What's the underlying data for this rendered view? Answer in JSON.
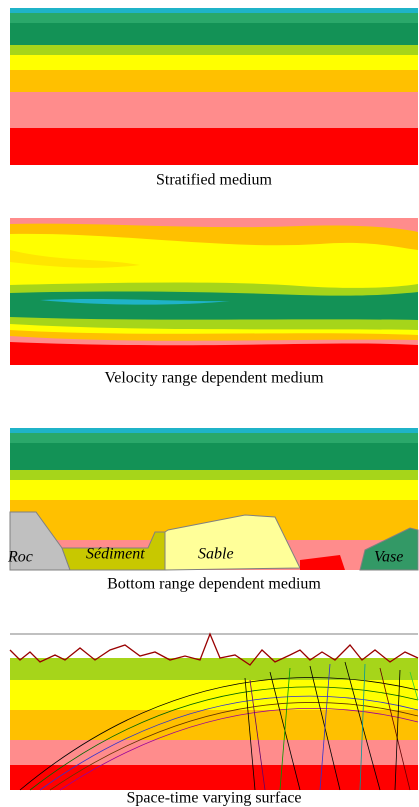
{
  "panels": [
    {
      "caption": "Stratified medium"
    },
    {
      "caption": "Velocity range dependent medium"
    },
    {
      "caption": "Bottom range dependent medium",
      "labels": [
        "Roc",
        "Sédiment",
        "Sable",
        "Vase"
      ]
    },
    {
      "caption": "Space-time varying surface"
    }
  ]
}
